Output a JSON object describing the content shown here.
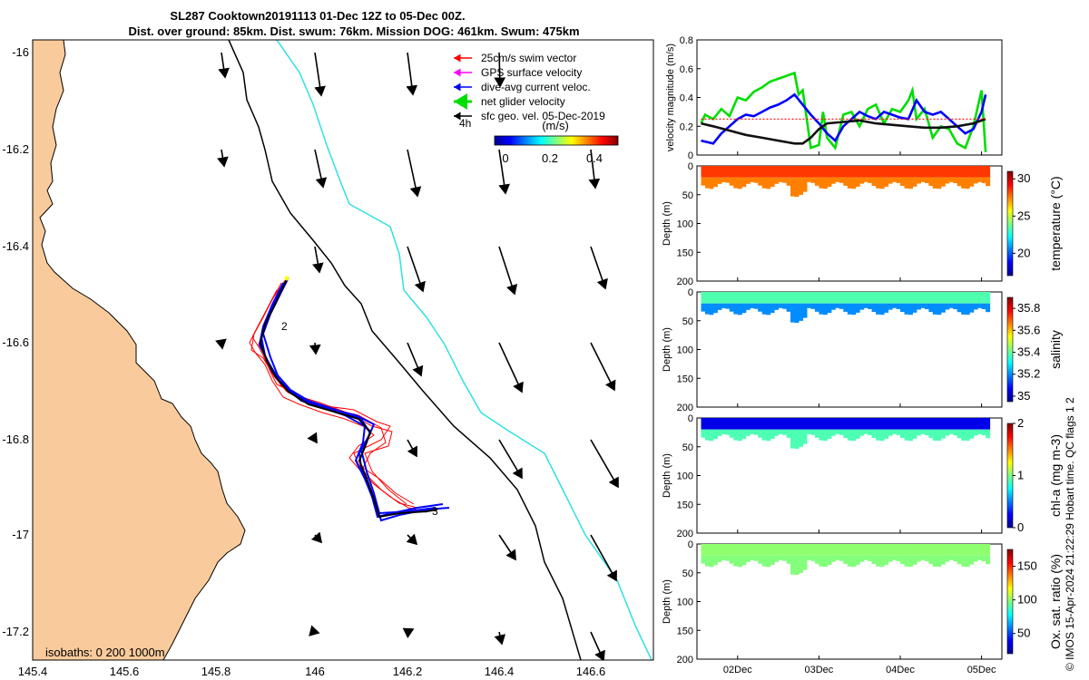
{
  "titles": {
    "line1": "SL287 Cooktown20191113 01-Dec 12Z to 05-Dec 00Z.",
    "line2": "Dist. over ground: 85km. Dist. swum: 76km. Mission DOG: 461km. Swum: 475km"
  },
  "map": {
    "x_ticks": [
      "145.4",
      "145.6",
      "145.8",
      "146",
      "146.2",
      "146.4",
      "146.6"
    ],
    "y_ticks": [
      "-16",
      "-16.2",
      "-16.4",
      "-16.6",
      "-16.8",
      "-17",
      "-17.2"
    ],
    "legend": [
      {
        "label": "25cm/s swim vector",
        "color": "#ff0000"
      },
      {
        "label": "GPS surface velocity",
        "color": "#ff00ff"
      },
      {
        "label": "dive-avg current veloc.",
        "color": "#0000ff"
      },
      {
        "label": "net glider velocity",
        "color": "#00dd00"
      },
      {
        "label": "sfc geo. vel. 05-Dec-2019",
        "color": "#000000"
      }
    ],
    "legend_note": "4h",
    "colorbar": {
      "label": "(m/s)",
      "ticks": [
        "0",
        "0.2",
        "0.4"
      ]
    },
    "track_labels": [
      "2",
      "3"
    ],
    "isobaths_label": "isobaths: 0   200  1000m",
    "land_color": "#f9cb9c",
    "isobath_200_color": "#000000",
    "isobath_1000_color": "#30e0e0"
  },
  "chart_data": [
    {
      "type": "line",
      "title": "",
      "ylabel": "velocity magnitude (m/s)",
      "ylim": [
        0,
        0.8
      ],
      "y_ticks": [
        "0",
        "0.2",
        "0.4",
        "0.6",
        "0.8"
      ],
      "x_range_days": [
        1.5,
        5.25
      ],
      "series": [
        {
          "name": "net glider velocity",
          "color": "#00dd00",
          "x": [
            1.55,
            1.6,
            1.7,
            1.8,
            1.9,
            2.0,
            2.1,
            2.2,
            2.3,
            2.4,
            2.5,
            2.6,
            2.7,
            2.75,
            2.8,
            2.85,
            2.9,
            3.0,
            3.05,
            3.1,
            3.2,
            3.3,
            3.4,
            3.5,
            3.6,
            3.7,
            3.8,
            3.9,
            4.0,
            4.1,
            4.15,
            4.2,
            4.3,
            4.4,
            4.5,
            4.6,
            4.7,
            4.8,
            4.9,
            5.0,
            5.05
          ],
          "y": [
            0.22,
            0.28,
            0.25,
            0.32,
            0.27,
            0.4,
            0.38,
            0.44,
            0.47,
            0.51,
            0.53,
            0.55,
            0.57,
            0.42,
            0.45,
            0.25,
            0.05,
            0.07,
            0.3,
            0.12,
            0.05,
            0.28,
            0.3,
            0.2,
            0.32,
            0.35,
            0.22,
            0.32,
            0.3,
            0.38,
            0.45,
            0.25,
            0.32,
            0.12,
            0.2,
            0.18,
            0.08,
            0.05,
            0.2,
            0.45,
            0.02
          ]
        },
        {
          "name": "dive-avg current veloc.",
          "color": "#0000ff",
          "x": [
            1.55,
            1.7,
            1.8,
            1.9,
            2.0,
            2.1,
            2.2,
            2.3,
            2.4,
            2.5,
            2.6,
            2.7,
            2.8,
            2.9,
            3.0,
            3.1,
            3.2,
            3.3,
            3.4,
            3.5,
            3.6,
            3.7,
            3.8,
            3.9,
            4.0,
            4.1,
            4.2,
            4.3,
            4.4,
            4.5,
            4.6,
            4.7,
            4.8,
            4.9,
            5.0,
            5.05
          ],
          "y": [
            0.1,
            0.08,
            0.15,
            0.2,
            0.25,
            0.28,
            0.27,
            0.3,
            0.33,
            0.35,
            0.38,
            0.42,
            0.35,
            0.28,
            0.22,
            0.15,
            0.1,
            0.2,
            0.25,
            0.3,
            0.27,
            0.25,
            0.3,
            0.28,
            0.26,
            0.25,
            0.38,
            0.3,
            0.28,
            0.3,
            0.25,
            0.2,
            0.15,
            0.18,
            0.3,
            0.42
          ]
        },
        {
          "name": "sfc geo. vel.",
          "color": "#111111",
          "x": [
            1.55,
            1.7,
            1.9,
            2.1,
            2.3,
            2.5,
            2.7,
            2.8,
            2.9,
            3.0,
            3.1,
            3.3,
            3.5,
            3.7,
            3.9,
            4.1,
            4.3,
            4.5,
            4.7,
            4.9,
            5.05
          ],
          "y": [
            0.22,
            0.2,
            0.17,
            0.14,
            0.12,
            0.1,
            0.08,
            0.08,
            0.12,
            0.18,
            0.22,
            0.23,
            0.24,
            0.22,
            0.21,
            0.2,
            0.19,
            0.19,
            0.2,
            0.22,
            0.25
          ]
        },
        {
          "name": "swim speed",
          "color": "#ff0000",
          "x": [
            1.55,
            5.05
          ],
          "y": [
            0.25,
            0.25
          ]
        }
      ]
    },
    {
      "type": "heatmap",
      "variable": "temperature (°C)",
      "ylabel": "Depth (m)",
      "ylim": [
        200,
        0
      ],
      "y_ticks": [
        "0",
        "50",
        "100",
        "150",
        "200"
      ],
      "colorbar_ticks": [
        "20",
        "25",
        "30"
      ],
      "clim": [
        17,
        31
      ],
      "surface_value": 28.5,
      "deep_value": 27.5,
      "max_depth_m": 40
    },
    {
      "type": "heatmap",
      "variable": "salinity",
      "ylabel": "Depth (m)",
      "ylim": [
        200,
        0
      ],
      "y_ticks": [
        "0",
        "50",
        "100",
        "150",
        "200"
      ],
      "colorbar_ticks": [
        "35",
        "35.2",
        "35.4",
        "35.6",
        "35.8"
      ],
      "clim": [
        34.95,
        35.9
      ],
      "surface_value": 35.38,
      "deep_value": 35.2,
      "max_depth_m": 40
    },
    {
      "type": "heatmap",
      "variable": "chl-a (mg m-3)",
      "ylabel": "Depth (m)",
      "ylim": [
        200,
        0
      ],
      "y_ticks": [
        "0",
        "50",
        "100",
        "150",
        "200"
      ],
      "colorbar_ticks": [
        "0",
        "1",
        "2"
      ],
      "clim": [
        0,
        2
      ],
      "surface_value": 0.2,
      "deep_value": 0.9,
      "max_depth_m": 40
    },
    {
      "type": "heatmap",
      "variable": "Ox. sat. ratio (%)",
      "ylabel": "Depth (m)",
      "ylim": [
        200,
        0
      ],
      "y_ticks": [
        "0",
        "50",
        "100",
        "150",
        "200"
      ],
      "colorbar_ticks": [
        "50",
        "100",
        "150"
      ],
      "clim": [
        20,
        175
      ],
      "surface_value": 100,
      "deep_value": 98,
      "max_depth_m": 40,
      "x_ticks": [
        "02Dec",
        "03Dec",
        "04Dec",
        "05Dec"
      ]
    }
  ],
  "credit": "© IMOS 15-Apr-2024 21:22:29 Hobart time. QC flags 1  2"
}
